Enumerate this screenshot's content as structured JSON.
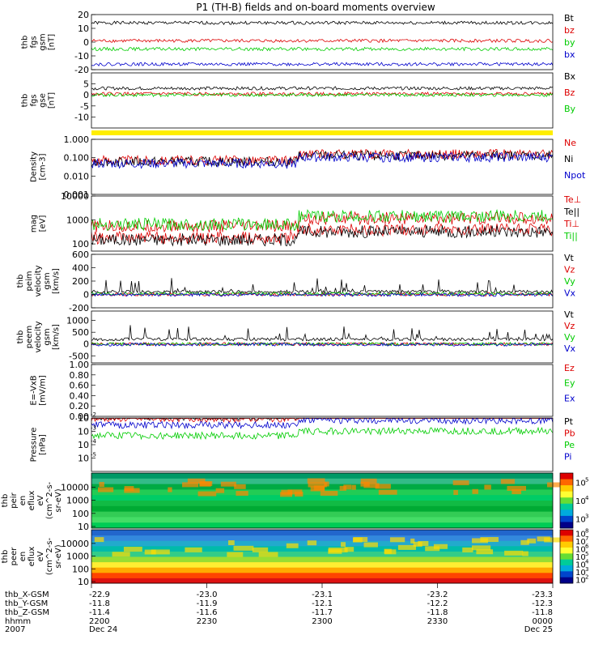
{
  "title": "P1 (TH-B) fields and on-board moments overview",
  "colors": {
    "black": "#000000",
    "red": "#dd0000",
    "green": "#00cc00",
    "blue": "#0000cc",
    "yellow": "#ffee00"
  },
  "chart_data": {
    "type": "line",
    "x_ticks": [
      {
        "hhmm": "2200",
        "date": "Dec 24",
        "x_gsm": "-22.9",
        "y_gsm": "-11.8",
        "z_gsm": "-11.4"
      },
      {
        "hhmm": "2230",
        "date": "",
        "x_gsm": "-23.0",
        "y_gsm": "-11.9",
        "z_gsm": "-11.6"
      },
      {
        "hhmm": "2300",
        "date": "",
        "x_gsm": "-23.1",
        "y_gsm": "-12.1",
        "z_gsm": "-11.7"
      },
      {
        "hhmm": "2330",
        "date": "",
        "x_gsm": "-23.2",
        "y_gsm": "-12.2",
        "z_gsm": "-11.8"
      },
      {
        "hhmm": "0000",
        "date": "Dec 25",
        "x_gsm": "-23.3",
        "y_gsm": "-12.3",
        "z_gsm": "-11.8"
      }
    ],
    "x_row_labels": [
      "thb_X-GSM",
      "thb_Y-GSM",
      "thb_Z-GSM",
      "hhmm",
      "2007"
    ],
    "panels": [
      {
        "id": "fgs_gsm",
        "ylabel": [
          "thb",
          "fgs",
          "gsm",
          "[nT]"
        ],
        "scale": "linear",
        "ylim": [
          -20,
          20
        ],
        "yticks": [
          "20",
          "10",
          "0",
          "-10",
          "-20"
        ],
        "yticks_v": [
          20,
          10,
          0,
          -10,
          -20
        ],
        "series": [
          {
            "name": "Bt",
            "color": "#000000",
            "base": 14
          },
          {
            "name": "bz",
            "color": "#dd0000",
            "base": 1
          },
          {
            "name": "by",
            "color": "#00cc00",
            "base": -5
          },
          {
            "name": "bx",
            "color": "#0000cc",
            "base": -16
          }
        ]
      },
      {
        "id": "fgs_gse",
        "ylabel": [
          "thb",
          "fgs",
          "gse",
          "[nT]"
        ],
        "scale": "linear",
        "ylim": [
          -15,
          10
        ],
        "yticks": [
          "5",
          "0",
          "-5",
          "-10"
        ],
        "yticks_v": [
          5,
          0,
          -5,
          -10
        ],
        "series": [
          {
            "name": "Bx",
            "color": "#000000",
            "base": 3
          },
          {
            "name": "Bz",
            "color": "#dd0000",
            "base": 0.5
          },
          {
            "name": "By",
            "color": "#00cc00",
            "base": 0
          }
        ]
      },
      {
        "id": "density",
        "ylabel": [
          "Density",
          "[cm-3]"
        ],
        "scale": "log",
        "ylim": [
          0.001,
          1
        ],
        "yticks": [
          "1.000",
          "0.100",
          "0.010",
          "0.001"
        ],
        "yticks_v": [
          1,
          0.1,
          0.01,
          0.001
        ],
        "series": [
          {
            "name": "Ne",
            "color": "#dd0000",
            "base": 0.12
          },
          {
            "name": "Ni",
            "color": "#000000",
            "base": 0.1
          },
          {
            "name": "Npot",
            "color": "#0000cc",
            "base": 0.08
          }
        ]
      },
      {
        "id": "temperature",
        "ylabel": [
          "mag",
          "[eV]"
        ],
        "scale": "log",
        "ylim": [
          50,
          10000
        ],
        "yticks": [
          "10000",
          "1000",
          "100"
        ],
        "yticks_v": [
          10000,
          1000,
          100
        ],
        "series": [
          {
            "name": "Te⊥",
            "color": "#dd0000",
            "base": 300
          },
          {
            "name": "Te||",
            "color": "#000000",
            "base": 250
          },
          {
            "name": "Ti⊥",
            "color": "#dd0000",
            "base": 900
          },
          {
            "name": "Ti||",
            "color": "#00cc00",
            "base": 1100
          }
        ]
      },
      {
        "id": "peim_velocity",
        "ylabel": [
          "thb",
          "peim",
          "velocity",
          "gsm",
          "[km/s]"
        ],
        "scale": "linear",
        "ylim": [
          -200,
          600
        ],
        "yticks": [
          "600",
          "400",
          "200",
          "0",
          "-200"
        ],
        "yticks_v": [
          600,
          400,
          200,
          0,
          -200
        ],
        "series": [
          {
            "name": "Vt",
            "color": "#000000",
            "base": 40
          },
          {
            "name": "Vz",
            "color": "#dd0000",
            "base": 0
          },
          {
            "name": "Vy",
            "color": "#00cc00",
            "base": 10
          },
          {
            "name": "Vx",
            "color": "#0000cc",
            "base": -5
          }
        ]
      },
      {
        "id": "peem_velocity",
        "ylabel": [
          "thb",
          "peem",
          "velocity",
          "gsm",
          "[km/s]"
        ],
        "scale": "linear",
        "ylim": [
          -800,
          1400
        ],
        "yticks": [
          "1000",
          "500",
          "0",
          "-500"
        ],
        "yticks_v": [
          1000,
          500,
          0,
          -500
        ],
        "series": [
          {
            "name": "Vt",
            "color": "#000000",
            "base": 200
          },
          {
            "name": "Vz",
            "color": "#dd0000",
            "base": 0
          },
          {
            "name": "Vy",
            "color": "#00cc00",
            "base": 0
          },
          {
            "name": "Vx",
            "color": "#0000cc",
            "base": -20
          }
        ]
      },
      {
        "id": "efield",
        "ylabel": [
          "E=-VxB",
          "[mV/m]"
        ],
        "scale": "linear",
        "ylim": [
          0,
          1
        ],
        "yticks": [
          "1.00",
          "0.80",
          "0.60",
          "0.40",
          "0.20",
          "0.00"
        ],
        "yticks_v": [
          1,
          0.8,
          0.6,
          0.4,
          0.2,
          0
        ],
        "series": [
          {
            "name": "Ez",
            "color": "#dd0000"
          },
          {
            "name": "Ey",
            "color": "#00cc00"
          },
          {
            "name": "Ex",
            "color": "#0000cc"
          }
        ]
      },
      {
        "id": "pressure",
        "ylabel": [
          "Pressure",
          "[nPa]"
        ],
        "scale": "log",
        "ylim": [
          1e-06,
          0.01
        ],
        "yticks": [
          "10",
          "10",
          "10",
          "10"
        ],
        "yticks_exp": [
          "-2",
          "-3",
          "-4",
          "-5"
        ],
        "yticks_v": [
          0.01,
          0.001,
          0.0001,
          1e-05
        ],
        "series": [
          {
            "name": "Pt",
            "color": "#000000",
            "base": 0.02
          },
          {
            "name": "Pb",
            "color": "#dd0000",
            "base": 0.015
          },
          {
            "name": "Pe",
            "color": "#00cc00",
            "base": 0.0008
          },
          {
            "name": "Pi",
            "color": "#0000cc",
            "base": 0.005
          }
        ]
      },
      {
        "id": "peir_spec",
        "ylabel": [
          "thb",
          "peir",
          "en",
          "eflux",
          "eV",
          "(cm^2-s-",
          "sr-eV)"
        ],
        "scale": "log",
        "type": "heatmap",
        "yticks": [
          "10000",
          "1000",
          "100",
          "10"
        ],
        "yticks_v": [
          10000,
          1000,
          100,
          10
        ],
        "colorbar": {
          "labels": [
            "10",
            "10",
            "10"
          ],
          "exps": [
            "5",
            "4",
            "3"
          ]
        }
      },
      {
        "id": "peer_spec",
        "ylabel": [
          "thb",
          "peer",
          "en",
          "eflux",
          "eV",
          "(cm^2-s-",
          "sr-eV)"
        ],
        "scale": "log",
        "type": "heatmap",
        "yticks": [
          "10000",
          "1000",
          "100",
          "10"
        ],
        "yticks_v": [
          10000,
          1000,
          100,
          10
        ],
        "colorbar": {
          "labels": [
            "10",
            "10",
            "10",
            "10",
            "10",
            "10",
            "10"
          ],
          "exps": [
            "8",
            "7",
            "6",
            "5",
            "4",
            "3",
            "2"
          ]
        }
      }
    ]
  }
}
